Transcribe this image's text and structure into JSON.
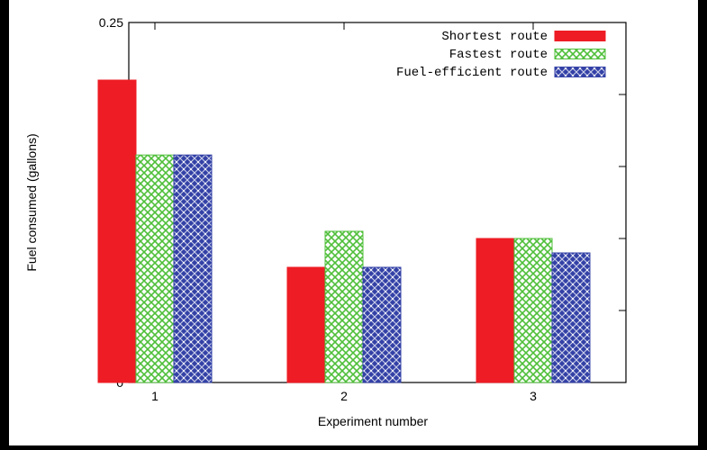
{
  "chart_data": {
    "type": "bar",
    "title": "",
    "xlabel": "Experiment number",
    "ylabel": "Fuel consumed (gallons)",
    "categories": [
      "1",
      "2",
      "3"
    ],
    "ylim": [
      0,
      0.25
    ],
    "yticks": [
      "0",
      "0.05",
      "0.1",
      "0.15",
      "0.2",
      "0.25"
    ],
    "grid": false,
    "legend_position": "top-right",
    "series": [
      {
        "name": "Shortest route",
        "values": [
          0.21,
          0.08,
          0.1
        ],
        "color": "#ee1c24",
        "pattern": "solid"
      },
      {
        "name": "Fastest route",
        "values": [
          0.158,
          0.105,
          0.1
        ],
        "color": "#4fbf3a",
        "pattern": "crosshatch"
      },
      {
        "name": "Fuel-efficient route",
        "values": [
          0.158,
          0.08,
          0.09
        ],
        "color": "#3341a6",
        "pattern": "diamond"
      }
    ]
  }
}
